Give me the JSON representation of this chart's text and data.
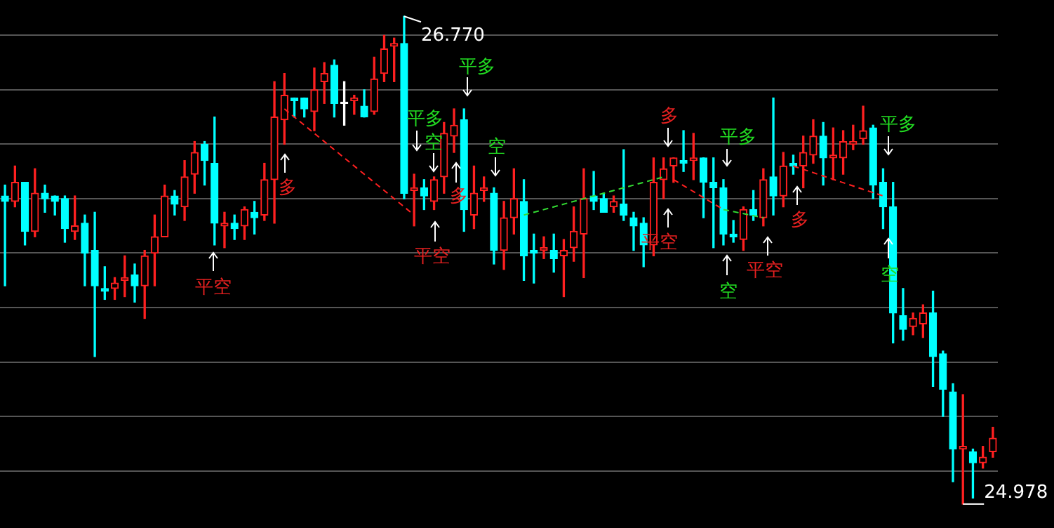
{
  "chart_data": {
    "type": "candlestick",
    "grid": "y",
    "legend": false,
    "marker": "none",
    "line_style": "dashed",
    "ylim": [
      24.89,
      26.83
    ],
    "yticks": [
      {
        "value": 25.1,
        "label": null
      },
      {
        "value": 25.3,
        "label": null
      },
      {
        "value": 25.5,
        "label": null
      },
      {
        "value": 25.7,
        "label": null
      },
      {
        "value": 25.9,
        "label": null
      },
      {
        "value": 26.1,
        "label": null
      },
      {
        "value": 26.3,
        "label": null
      },
      {
        "value": 26.5,
        "label": null
      },
      {
        "value": 26.7,
        "label": null
      }
    ],
    "categories": [
      null,
      null,
      null,
      null,
      null,
      null,
      null,
      null,
      null,
      null,
      null,
      null,
      null,
      null,
      null,
      null,
      null,
      null,
      null,
      null,
      null,
      null,
      null,
      null,
      null,
      null,
      null,
      null,
      null,
      null,
      null,
      null,
      null,
      null,
      null,
      null,
      null,
      null,
      null,
      null,
      null,
      null,
      null,
      null,
      null,
      null,
      null,
      null,
      null,
      null,
      null,
      null,
      null,
      null,
      null,
      null,
      null,
      null,
      null,
      null,
      null,
      null,
      null,
      null,
      null,
      null,
      null,
      null,
      null,
      null,
      null,
      null,
      null,
      null,
      null,
      null,
      null,
      null,
      null,
      null,
      null,
      null,
      null,
      null,
      null,
      null,
      null,
      null,
      null,
      null,
      null,
      null,
      null,
      null,
      null,
      null,
      null,
      null,
      null,
      null
    ],
    "ohlc": [
      [
        26.11,
        26.15,
        25.78,
        26.09
      ],
      [
        26.09,
        26.22,
        26.07,
        26.16
      ],
      [
        26.16,
        26.16,
        25.93,
        25.98
      ],
      [
        25.98,
        26.21,
        25.96,
        26.12
      ],
      [
        26.12,
        26.15,
        26.05,
        26.1
      ],
      [
        26.11,
        26.11,
        26.04,
        26.09
      ],
      [
        26.1,
        26.11,
        25.94,
        25.99
      ],
      [
        25.98,
        26.11,
        25.95,
        26.0
      ],
      [
        26.01,
        26.04,
        25.78,
        25.9
      ],
      [
        25.91,
        26.05,
        25.52,
        25.78
      ],
      [
        25.77,
        25.85,
        25.73,
        25.76
      ],
      [
        25.77,
        25.81,
        25.73,
        25.79
      ],
      [
        25.8,
        25.89,
        25.74,
        25.81
      ],
      [
        25.82,
        25.86,
        25.72,
        25.78
      ],
      [
        25.78,
        25.91,
        25.66,
        25.89
      ],
      [
        25.9,
        26.04,
        25.78,
        25.96
      ],
      [
        25.96,
        26.15,
        25.96,
        26.11
      ],
      [
        26.11,
        26.13,
        26.04,
        26.08
      ],
      [
        26.07,
        26.24,
        26.02,
        26.18
      ],
      [
        26.19,
        26.31,
        26.12,
        26.27
      ],
      [
        26.3,
        26.31,
        26.15,
        26.24
      ],
      [
        26.23,
        26.4,
        25.93,
        26.01
      ],
      [
        26.0,
        26.05,
        25.92,
        26.01
      ],
      [
        26.01,
        26.04,
        25.95,
        25.99
      ],
      [
        26.0,
        26.07,
        25.95,
        26.06
      ],
      [
        26.05,
        26.09,
        25.97,
        26.03
      ],
      [
        26.04,
        26.23,
        26.02,
        26.17
      ],
      [
        26.17,
        26.53,
        26.01,
        26.4
      ],
      [
        26.39,
        26.56,
        26.3,
        26.48
      ],
      [
        26.47,
        26.47,
        26.4,
        26.46
      ],
      [
        26.47,
        26.47,
        26.4,
        26.43
      ],
      [
        26.42,
        26.58,
        26.35,
        26.5
      ],
      [
        26.53,
        26.6,
        26.45,
        26.56
      ],
      [
        26.59,
        26.61,
        26.4,
        26.45
      ],
      [
        26.45,
        26.53,
        26.37,
        26.45
      ],
      [
        26.46,
        26.48,
        26.41,
        26.47
      ],
      [
        26.44,
        26.5,
        26.4,
        26.4
      ],
      [
        26.42,
        26.62,
        26.41,
        26.54
      ],
      [
        26.56,
        26.7,
        26.53,
        26.65
      ],
      [
        26.66,
        26.69,
        26.53,
        26.67
      ],
      [
        26.67,
        26.77,
        26.1,
        26.12
      ],
      [
        26.13,
        26.19,
        26.0,
        26.14
      ],
      [
        26.14,
        26.17,
        26.06,
        26.11
      ],
      [
        26.09,
        26.18,
        26.06,
        26.17
      ],
      [
        26.18,
        26.38,
        26.12,
        26.34
      ],
      [
        26.33,
        26.43,
        26.27,
        26.37
      ],
      [
        26.39,
        26.43,
        25.98,
        26.06
      ],
      [
        26.04,
        26.22,
        25.99,
        26.12
      ],
      [
        26.13,
        26.18,
        26.09,
        26.14
      ],
      [
        26.12,
        26.14,
        25.86,
        25.91
      ],
      [
        25.91,
        26.09,
        25.84,
        26.03
      ],
      [
        26.03,
        26.21,
        25.97,
        26.1
      ],
      [
        26.09,
        26.17,
        25.8,
        25.89
      ],
      [
        25.91,
        25.97,
        25.79,
        25.9
      ],
      [
        25.91,
        25.96,
        25.88,
        25.92
      ],
      [
        25.91,
        25.97,
        25.83,
        25.88
      ],
      [
        25.89,
        25.95,
        25.74,
        25.91
      ],
      [
        25.92,
        26.07,
        25.87,
        25.98
      ],
      [
        25.97,
        26.21,
        25.81,
        26.1
      ],
      [
        26.11,
        26.2,
        26.06,
        26.09
      ],
      [
        26.1,
        26.12,
        26.05,
        26.05
      ],
      [
        26.07,
        26.11,
        26.05,
        26.09
      ],
      [
        26.08,
        26.28,
        26.02,
        26.04
      ],
      [
        26.03,
        26.05,
        25.91,
        26.0
      ],
      [
        26.01,
        26.03,
        25.85,
        25.93
      ],
      [
        25.93,
        26.25,
        25.89,
        26.16
      ],
      [
        26.17,
        26.25,
        26.1,
        26.21
      ],
      [
        26.22,
        26.25,
        26.16,
        26.25
      ],
      [
        26.24,
        26.35,
        26.2,
        26.23
      ],
      [
        26.24,
        26.34,
        26.17,
        26.25
      ],
      [
        26.25,
        26.25,
        26.03,
        26.16
      ],
      [
        26.16,
        26.25,
        25.92,
        26.14
      ],
      [
        26.14,
        26.17,
        25.93,
        25.97
      ],
      [
        25.97,
        26.02,
        25.94,
        25.96
      ],
      [
        25.95,
        26.07,
        25.91,
        26.06
      ],
      [
        26.06,
        26.13,
        26.02,
        26.04
      ],
      [
        26.03,
        26.21,
        26.0,
        26.17
      ],
      [
        26.18,
        26.47,
        26.04,
        26.11
      ],
      [
        26.11,
        26.27,
        26.07,
        26.22
      ],
      [
        26.23,
        26.26,
        26.19,
        26.22
      ],
      [
        26.22,
        26.33,
        26.14,
        26.27
      ],
      [
        26.26,
        26.39,
        26.23,
        26.33
      ],
      [
        26.33,
        26.38,
        26.15,
        26.25
      ],
      [
        26.25,
        26.36,
        26.17,
        26.26
      ],
      [
        26.25,
        26.35,
        26.19,
        26.31
      ],
      [
        26.3,
        26.37,
        26.28,
        26.31
      ],
      [
        26.32,
        26.44,
        26.3,
        26.35
      ],
      [
        26.36,
        26.37,
        26.1,
        26.15
      ],
      [
        26.16,
        26.21,
        25.99,
        26.07
      ],
      [
        26.07,
        26.16,
        25.57,
        25.68
      ],
      [
        25.67,
        25.77,
        25.58,
        25.62
      ],
      [
        25.63,
        25.68,
        25.6,
        25.66
      ],
      [
        25.64,
        25.71,
        25.59,
        25.68
      ],
      [
        25.68,
        25.76,
        25.41,
        25.52
      ],
      [
        25.53,
        25.54,
        25.3,
        25.4
      ],
      [
        25.39,
        25.42,
        25.06,
        25.18
      ],
      [
        25.18,
        25.38,
        24.978,
        25.19
      ],
      [
        25.17,
        25.18,
        25.0,
        25.13
      ],
      [
        25.13,
        25.19,
        25.11,
        25.15
      ],
      [
        25.17,
        25.26,
        25.15,
        25.22
      ]
    ],
    "colors": [
      "#00ffff",
      "#ff2020",
      "#00ffff",
      "#ff2020",
      "#00ffff",
      "#00ffff",
      "#00ffff",
      "#ff2020",
      "#00ffff",
      "#00ffff",
      "#00ffff",
      "#ff2020",
      "#ff2020",
      "#00ffff",
      "#ff2020",
      "#ff2020",
      "#ff2020",
      "#00ffff",
      "#ff2020",
      "#ff2020",
      "#00ffff",
      "#00ffff",
      "#ff2020",
      "#00ffff",
      "#ff2020",
      "#00ffff",
      "#ff2020",
      "#ff2020",
      "#ff2020",
      "#00ffff",
      "#00ffff",
      "#ff2020",
      "#ff2020",
      "#00ffff",
      "#ffffff",
      "#ff2020",
      "#00ffff",
      "#ff2020",
      "#ff2020",
      "#ff2020",
      "#00ffff",
      "#ff2020",
      "#00ffff",
      "#ff2020",
      "#ff2020",
      "#ff2020",
      "#00ffff",
      "#ff2020",
      "#ff2020",
      "#00ffff",
      "#ff2020",
      "#ff2020",
      "#00ffff",
      "#00ffff",
      "#ff2020",
      "#00ffff",
      "#ff2020",
      "#ff2020",
      "#ff2020",
      "#00ffff",
      "#00ffff",
      "#ff2020",
      "#00ffff",
      "#00ffff",
      "#00ffff",
      "#ff2020",
      "#ff2020",
      "#ff2020",
      "#00ffff",
      "#ff2020",
      "#00ffff",
      "#00ffff",
      "#00ffff",
      "#00ffff",
      "#ff2020",
      "#00ffff",
      "#ff2020",
      "#00ffff",
      "#ff2020",
      "#00ffff",
      "#ff2020",
      "#ff2020",
      "#00ffff",
      "#ff2020",
      "#ff2020",
      "#ff2020",
      "#ff2020",
      "#00ffff",
      "#00ffff",
      "#00ffff",
      "#00ffff",
      "#ff2020",
      "#ff2020",
      "#00ffff",
      "#00ffff",
      "#00ffff",
      "#ff2020",
      "#00ffff",
      "#ff2020",
      "#ff2020"
    ],
    "series": [
      {
        "type": "line",
        "color": "#ff2020",
        "values": [
          null,
          null,
          null,
          null,
          null,
          null,
          null,
          null,
          null,
          null,
          null,
          null,
          null,
          null,
          null,
          null,
          null,
          null,
          null,
          null,
          null,
          null,
          null,
          null,
          null,
          null,
          null,
          null,
          26.43,
          null,
          null,
          null,
          null,
          null,
          null,
          null,
          null,
          null,
          null,
          null,
          null,
          26.04,
          null,
          null,
          null,
          null,
          null,
          null,
          null,
          null,
          null,
          null,
          null,
          null,
          null,
          null,
          null,
          null,
          null,
          null,
          null,
          null,
          null,
          null,
          null,
          null,
          null,
          null,
          null,
          null,
          null,
          null,
          null,
          null,
          null,
          null,
          null,
          null,
          null,
          null,
          null,
          null,
          null,
          null,
          null,
          null,
          null,
          null,
          null,
          null,
          null,
          null,
          null,
          null,
          null,
          null,
          null,
          null,
          null,
          null
        ]
      },
      {
        "type": "line",
        "color": "#33dd33",
        "values": [
          null,
          null,
          null,
          null,
          null,
          null,
          null,
          null,
          null,
          null,
          null,
          null,
          null,
          null,
          null,
          null,
          null,
          null,
          null,
          null,
          null,
          null,
          null,
          null,
          null,
          null,
          null,
          null,
          null,
          null,
          null,
          null,
          null,
          null,
          null,
          null,
          null,
          null,
          null,
          null,
          null,
          null,
          null,
          null,
          null,
          null,
          null,
          null,
          null,
          null,
          null,
          null,
          26.04,
          null,
          null,
          null,
          null,
          null,
          null,
          null,
          null,
          null,
          null,
          null,
          null,
          null,
          26.18,
          null,
          null,
          null,
          null,
          null,
          null,
          null,
          null,
          null,
          null,
          null,
          null,
          null,
          null,
          null,
          null,
          null,
          null,
          null,
          null,
          null,
          null,
          null,
          null,
          null,
          null,
          null,
          null,
          null,
          null,
          null,
          null,
          null
        ]
      },
      {
        "type": "line",
        "color": "#ff2020",
        "values": [
          null,
          null,
          null,
          null,
          null,
          null,
          null,
          null,
          null,
          null,
          null,
          null,
          null,
          null,
          null,
          null,
          null,
          null,
          null,
          null,
          null,
          null,
          null,
          null,
          null,
          null,
          null,
          null,
          null,
          null,
          null,
          null,
          null,
          null,
          null,
          null,
          null,
          null,
          null,
          null,
          null,
          null,
          null,
          null,
          null,
          null,
          null,
          null,
          null,
          null,
          null,
          null,
          null,
          null,
          null,
          null,
          null,
          null,
          null,
          null,
          null,
          null,
          null,
          null,
          null,
          null,
          null,
          26.17,
          null,
          null,
          null,
          null,
          26.06,
          null,
          null,
          null,
          null,
          null,
          null,
          null,
          null,
          null,
          null,
          null,
          null,
          null,
          null,
          null,
          null,
          null,
          null,
          null,
          null,
          null,
          null,
          null,
          null,
          null,
          null,
          null
        ]
      },
      {
        "type": "line",
        "color": "#33dd33",
        "values": [
          null,
          null,
          null,
          null,
          null,
          null,
          null,
          null,
          null,
          null,
          null,
          null,
          null,
          null,
          null,
          null,
          null,
          null,
          null,
          null,
          null,
          null,
          null,
          null,
          null,
          null,
          null,
          null,
          null,
          null,
          null,
          null,
          null,
          null,
          null,
          null,
          null,
          null,
          null,
          null,
          null,
          null,
          null,
          null,
          null,
          null,
          null,
          null,
          null,
          null,
          null,
          null,
          null,
          null,
          null,
          null,
          null,
          null,
          null,
          null,
          null,
          null,
          null,
          null,
          null,
          null,
          null,
          null,
          null,
          null,
          null,
          null,
          26.06,
          null,
          null,
          null,
          26.03,
          null,
          null,
          null,
          null,
          null,
          null,
          null,
          null,
          null,
          null,
          null,
          null,
          null,
          null,
          null,
          null,
          null,
          null,
          null,
          null,
          null,
          null,
          null
        ]
      },
      {
        "type": "line",
        "color": "#ff2020",
        "values": [
          null,
          null,
          null,
          null,
          null,
          null,
          null,
          null,
          null,
          null,
          null,
          null,
          null,
          null,
          null,
          null,
          null,
          null,
          null,
          null,
          null,
          null,
          null,
          null,
          null,
          null,
          null,
          null,
          null,
          null,
          null,
          null,
          null,
          null,
          null,
          null,
          null,
          null,
          null,
          null,
          null,
          null,
          null,
          null,
          null,
          null,
          null,
          null,
          null,
          null,
          null,
          null,
          null,
          null,
          null,
          null,
          null,
          null,
          null,
          null,
          null,
          null,
          null,
          null,
          null,
          null,
          null,
          null,
          null,
          null,
          null,
          null,
          null,
          null,
          null,
          null,
          null,
          null,
          null,
          26.22,
          null,
          null,
          null,
          null,
          null,
          null,
          null,
          null,
          26.11,
          null,
          null,
          null,
          null,
          null,
          null,
          null,
          null,
          null,
          null,
          null
        ]
      }
    ],
    "annotations": [
      "平空",
      "多",
      "平多",
      "空",
      "平空",
      "多",
      "平多",
      "空",
      "多",
      "平空",
      "平多",
      "空",
      "平空",
      "多",
      "平多",
      "空",
      "26.770",
      "24.978"
    ]
  }
}
